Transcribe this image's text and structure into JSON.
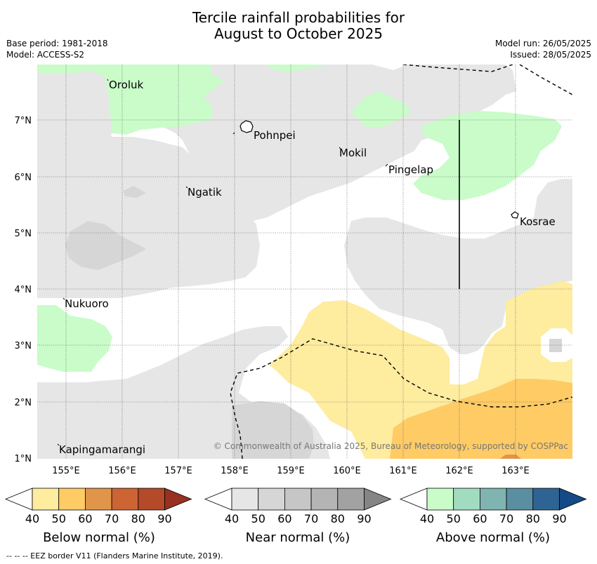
{
  "title_line1": "Tercile rainfall probabilities for",
  "title_line2": "August to October 2025",
  "base_period": "Base period: 1981-2018",
  "model": "Model: ACCESS-S2",
  "model_run": "Model run: 26/05/2025",
  "issued": "Issued: 28/05/2025",
  "map": {
    "lon_ticks": [
      "155°E",
      "156°E",
      "157°E",
      "158°E",
      "159°E",
      "160°E",
      "161°E",
      "162°E",
      "163°E"
    ],
    "lat_ticks": [
      "1°N",
      "2°N",
      "3°N",
      "4°N",
      "5°N",
      "6°N",
      "7°N"
    ],
    "places": [
      "Oroluk",
      "Pohnpei",
      "Mokil",
      "Pingelap",
      "Ngatik",
      "Kosrae",
      "Nukuoro",
      "Kapingamarangi"
    ],
    "copyright": "© Commonwealth of Australia 2025, Bureau of Meteorology, supported by COSPPac"
  },
  "legends": [
    {
      "title": "Below normal (%)",
      "ticks": [
        "40",
        "50",
        "60",
        "70",
        "80",
        "90"
      ],
      "colors": [
        "#ffffff",
        "#feec9f",
        "#fecb65",
        "#e1954a",
        "#cd6434",
        "#b54a28",
        "#983120"
      ]
    },
    {
      "title": "Near normal (%)",
      "ticks": [
        "40",
        "50",
        "60",
        "70",
        "80",
        "90"
      ],
      "colors": [
        "#ffffff",
        "#e6e6e6",
        "#d6d6d6",
        "#c6c6c6",
        "#b4b4b4",
        "#a2a2a2",
        "#858585"
      ]
    },
    {
      "title": "Above normal (%)",
      "ticks": [
        "40",
        "50",
        "60",
        "70",
        "80",
        "90"
      ],
      "colors": [
        "#ffffff",
        "#c9fcc9",
        "#a2dcc0",
        "#7fb4b0",
        "#5a8fa1",
        "#2e6494",
        "#144a86"
      ]
    }
  ],
  "footer": "--  --  -- EEZ border V11 (Flanders Marine Institute, 2019)."
}
